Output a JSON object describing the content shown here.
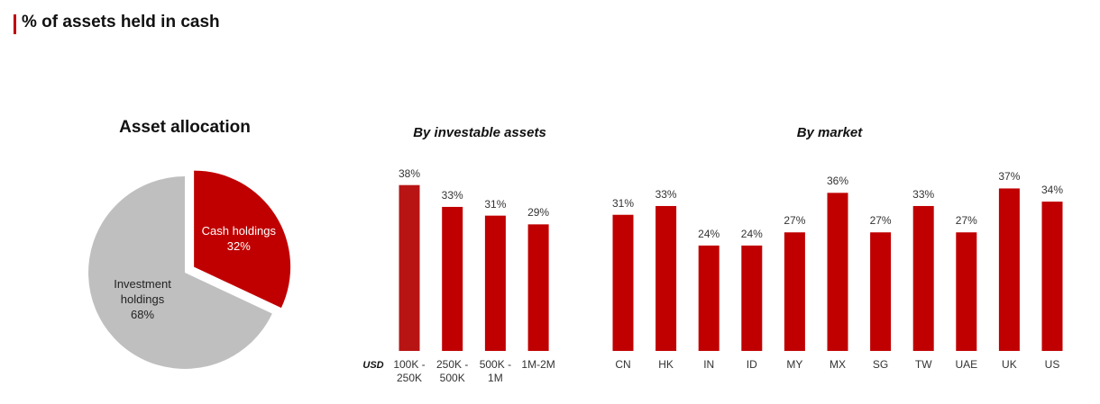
{
  "title": "% of assets held in cash",
  "chart_data": [
    {
      "type": "pie",
      "title": "Asset allocation",
      "categories": [
        "Cash holdings",
        "Investment holdings"
      ],
      "values": [
        32,
        68
      ],
      "value_labels": [
        "32%",
        "68%"
      ],
      "colors": [
        "#c00000",
        "#bfbfbf"
      ],
      "exploded": [
        true,
        false
      ]
    },
    {
      "type": "bar",
      "title": "By investable assets",
      "xlabel": "USD",
      "categories": [
        "100K - 250K",
        "250K - 500K",
        "500K - 1M",
        "1M-2M"
      ],
      "values": [
        38,
        33,
        31,
        29
      ],
      "value_labels": [
        "38%",
        "33%",
        "31%",
        "29%"
      ],
      "colors": [
        "#b81414",
        "#c00000",
        "#c00000",
        "#c00000"
      ]
    },
    {
      "type": "bar",
      "title": "By market",
      "categories": [
        "CN",
        "HK",
        "IN",
        "ID",
        "MY",
        "MX",
        "SG",
        "TW",
        "UAE",
        "UK",
        "US"
      ],
      "values": [
        31,
        33,
        24,
        24,
        27,
        36,
        27,
        33,
        27,
        37,
        34
      ],
      "value_labels": [
        "31%",
        "33%",
        "24%",
        "24%",
        "27%",
        "36%",
        "27%",
        "33%",
        "27%",
        "37%",
        "34%"
      ],
      "colors": [
        "#c00000",
        "#c00000",
        "#c00000",
        "#c00000",
        "#c00000",
        "#c00000",
        "#c00000",
        "#c00000",
        "#c00000",
        "#c00000",
        "#c00000"
      ]
    }
  ]
}
